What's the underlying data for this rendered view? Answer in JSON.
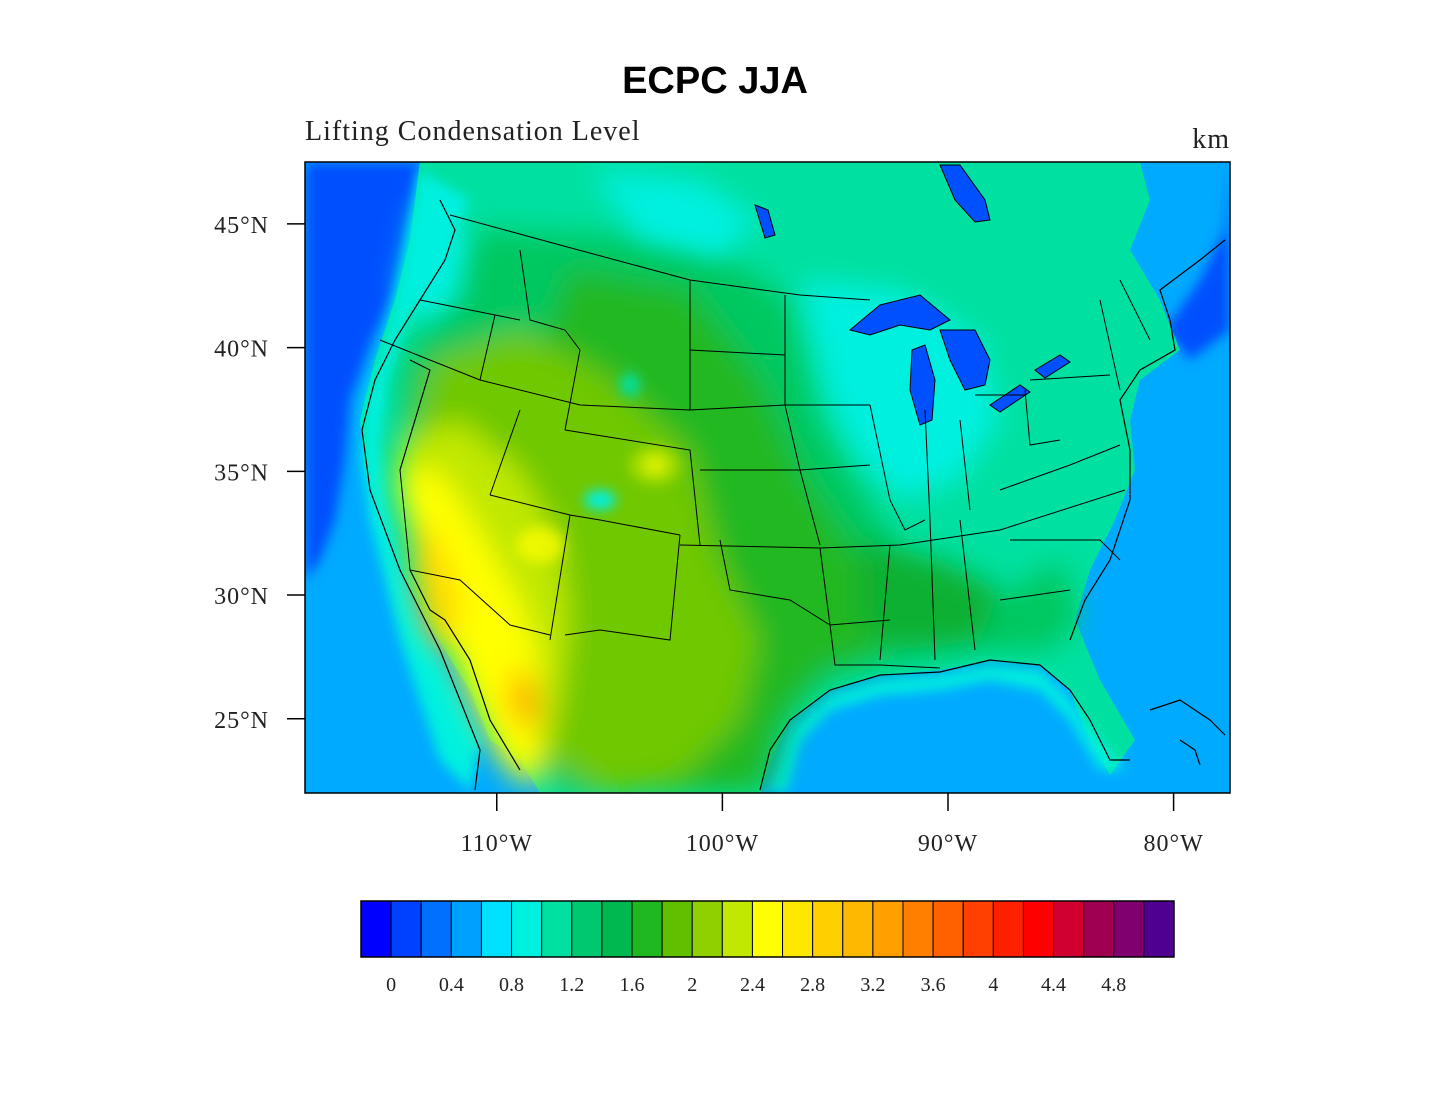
{
  "title": "ECPC JJA",
  "subtitle": "Lifting Condensation Level",
  "units": "km",
  "map": {
    "lon_range": [
      -118.5,
      -77.5
    ],
    "lat_range": [
      22,
      47.5
    ],
    "lat_ticks": [
      {
        "value": 45,
        "label": "45°N"
      },
      {
        "value": 40,
        "label": "40°N"
      },
      {
        "value": 35,
        "label": "35°N"
      },
      {
        "value": 30,
        "label": "30°N"
      },
      {
        "value": 25,
        "label": "25°N"
      }
    ],
    "lon_ticks": [
      {
        "value": -110,
        "label": "110°W"
      },
      {
        "value": -100,
        "label": "100°W"
      },
      {
        "value": -90,
        "label": "90°W"
      },
      {
        "value": -80,
        "label": "80°W"
      }
    ],
    "palette": {
      "ocean_deep": "#0050ff",
      "ocean": "#00aaff",
      "coast": "#00e0ff",
      "cyan": "#00f0e0",
      "aqua_green": "#00e0a0",
      "green": "#00c860",
      "green2": "#20b820",
      "yellowgreen": "#70c800",
      "lime": "#c0e800",
      "yellow": "#ffff00",
      "gold": "#ffd800",
      "orange": "#ffb000"
    }
  },
  "colorbar": {
    "colors": [
      "#0000ff",
      "#0040ff",
      "#0070ff",
      "#00a0ff",
      "#00e0ff",
      "#00f0e0",
      "#00e0a0",
      "#00c870",
      "#00b850",
      "#20b820",
      "#60c000",
      "#90d000",
      "#c0e800",
      "#ffff00",
      "#ffe800",
      "#ffd000",
      "#ffb800",
      "#ffa000",
      "#ff8000",
      "#ff6000",
      "#ff4000",
      "#ff2000",
      "#ff0000",
      "#d00030",
      "#a00050",
      "#800070",
      "#500090"
    ],
    "labels": [
      "0",
      "0.4",
      "0.8",
      "1.2",
      "1.6",
      "2",
      "2.4",
      "2.8",
      "3.2",
      "3.6",
      "4",
      "4.4",
      "4.8"
    ]
  }
}
